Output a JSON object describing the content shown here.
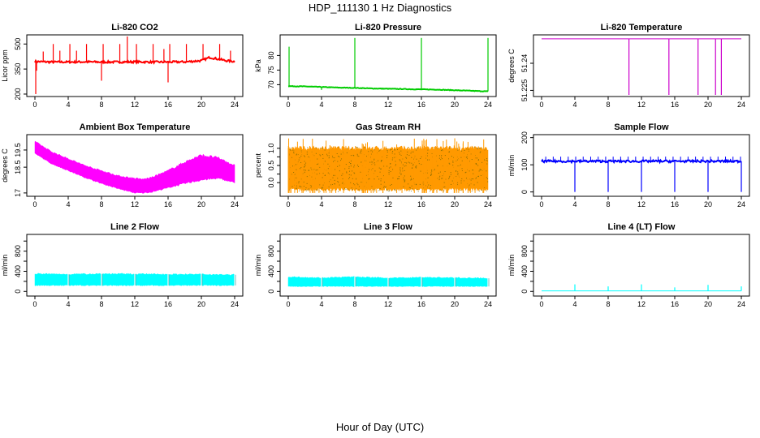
{
  "figure": {
    "title": "HDP_111130  1 Hz Diagnostics",
    "xlabel": "Hour of Day (UTC)"
  },
  "chart_data": [
    {
      "type": "line",
      "title": "Li-820 CO2",
      "ylabel": "Licor ppm",
      "color": "#ff0000",
      "x_ticks": [
        0,
        4,
        8,
        12,
        16,
        20,
        24
      ],
      "y_ticks": [
        200,
        350,
        500
      ],
      "xlim": [
        0,
        24
      ],
      "ylim": [
        195,
        545
      ],
      "baseline": [
        [
          0,
          395
        ],
        [
          2,
          392
        ],
        [
          4,
          392
        ],
        [
          6,
          393
        ],
        [
          8,
          392
        ],
        [
          10,
          392
        ],
        [
          12,
          393
        ],
        [
          14,
          392
        ],
        [
          16,
          392
        ],
        [
          18,
          393
        ],
        [
          20,
          400
        ],
        [
          21,
          420
        ],
        [
          22,
          410
        ],
        [
          23,
          400
        ],
        [
          24,
          395
        ]
      ],
      "band": 12,
      "spikes": [
        [
          0.1,
          200
        ],
        [
          0.2,
          340
        ],
        [
          1,
          455
        ],
        [
          2.2,
          500
        ],
        [
          3,
          460
        ],
        [
          4.2,
          500
        ],
        [
          5,
          460
        ],
        [
          6.2,
          500
        ],
        [
          8,
          280
        ],
        [
          8.2,
          500
        ],
        [
          10.2,
          500
        ],
        [
          11.1,
          545
        ],
        [
          12.2,
          500
        ],
        [
          14.2,
          500
        ],
        [
          15.5,
          470
        ],
        [
          16,
          270
        ],
        [
          16.2,
          500
        ],
        [
          18.2,
          500
        ],
        [
          20.2,
          500
        ],
        [
          22.2,
          500
        ],
        [
          23.5,
          460
        ]
      ]
    },
    {
      "type": "line",
      "title": "Li-820 Pressure",
      "ylabel": "kPa",
      "color": "#00cc00",
      "x_ticks": [
        0,
        4,
        8,
        12,
        16,
        20,
        24
      ],
      "y_ticks": [
        70,
        75,
        80
      ],
      "xlim": [
        0,
        24
      ],
      "ylim": [
        66.5,
        86.5
      ],
      "baseline": [
        [
          0,
          69.5
        ],
        [
          2,
          69.4
        ],
        [
          4,
          69.2
        ],
        [
          6,
          69.0
        ],
        [
          8,
          68.9
        ],
        [
          10,
          68.7
        ],
        [
          12,
          68.6
        ],
        [
          14,
          68.5
        ],
        [
          16,
          68.4
        ],
        [
          18,
          68.3
        ],
        [
          20,
          68.1
        ],
        [
          22,
          67.9
        ],
        [
          24,
          67.7
        ]
      ],
      "band": 0.2,
      "spikes": [
        [
          0.1,
          83
        ],
        [
          4,
          68.2
        ],
        [
          8,
          86
        ],
        [
          16,
          86
        ],
        [
          24,
          86
        ]
      ]
    },
    {
      "type": "line",
      "title": "Li-820 Temperature",
      "ylabel": "degrees C",
      "color": "#cc00cc",
      "x_ticks": [
        0,
        4,
        8,
        12,
        16,
        20,
        24
      ],
      "y_ticks": [
        51.225,
        51.24
      ],
      "xlim": [
        0,
        24
      ],
      "ylim": [
        51.2225,
        51.2548
      ],
      "baseline": [
        [
          0,
          51.2535
        ],
        [
          24,
          51.2535
        ]
      ],
      "band": 0,
      "spikes": [
        [
          10.5,
          51.2225
        ],
        [
          15.3,
          51.2225
        ],
        [
          18.8,
          51.2225
        ],
        [
          20.9,
          51.2225
        ],
        [
          21.6,
          51.2225
        ]
      ]
    },
    {
      "type": "area",
      "title": "Ambient Box Temperature",
      "ylabel": "degrees C",
      "color": "#ff00ff",
      "x_ticks": [
        0,
        4,
        8,
        12,
        16,
        20,
        24
      ],
      "y_ticks": [
        17.0,
        18.5,
        19.5
      ],
      "xlim": [
        0,
        24
      ],
      "ylim": [
        16.9,
        20.3
      ],
      "lower": [
        [
          0,
          19.3
        ],
        [
          2,
          18.7
        ],
        [
          4,
          18.3
        ],
        [
          6,
          17.9
        ],
        [
          8,
          17.55
        ],
        [
          10,
          17.25
        ],
        [
          12,
          17.0
        ],
        [
          13,
          17.0
        ],
        [
          14,
          17.05
        ],
        [
          16,
          17.3
        ],
        [
          18,
          17.55
        ],
        [
          20,
          17.75
        ],
        [
          22,
          17.85
        ],
        [
          24,
          17.6
        ]
      ],
      "upper": [
        [
          0,
          20.0
        ],
        [
          2,
          19.4
        ],
        [
          4,
          19.0
        ],
        [
          6,
          18.6
        ],
        [
          8,
          18.3
        ],
        [
          10,
          18.0
        ],
        [
          12,
          17.85
        ],
        [
          13,
          17.8
        ],
        [
          14,
          17.9
        ],
        [
          16,
          18.3
        ],
        [
          18,
          18.8
        ],
        [
          20,
          19.2
        ],
        [
          22,
          19.05
        ],
        [
          24,
          18.6
        ]
      ]
    },
    {
      "type": "area",
      "title": "Gas Stream RH",
      "ylabel": "percent",
      "color": "#ff9900",
      "dot_color": "#5a5a00",
      "x_ticks": [
        0,
        4,
        8,
        12,
        16,
        20,
        24
      ],
      "y_ticks": [
        0.0,
        0.5,
        1.0
      ],
      "y_tick_labels": [
        "0.0",
        "0.5",
        "1.0"
      ],
      "y_minor_ticks": [
        0.25,
        0.75
      ],
      "xlim": [
        0,
        24
      ],
      "ylim": [
        -0.35,
        1.35
      ],
      "lower": [
        [
          0,
          -0.2
        ],
        [
          24,
          -0.2
        ]
      ],
      "upper": [
        [
          0,
          1.0
        ],
        [
          24,
          1.0
        ]
      ]
    },
    {
      "type": "line",
      "title": "Sample Flow",
      "ylabel": "ml/min",
      "color": "#0000ff",
      "x_ticks": [
        0,
        4,
        8,
        12,
        16,
        20,
        24
      ],
      "y_ticks": [
        0,
        100,
        200
      ],
      "xlim": [
        0,
        24
      ],
      "ylim": [
        -10,
        205
      ],
      "baseline": [
        [
          0,
          113
        ],
        [
          24,
          113
        ]
      ],
      "band": 8,
      "spikes": [
        [
          4,
          0
        ],
        [
          8,
          0
        ],
        [
          12,
          0
        ],
        [
          16,
          0
        ],
        [
          20,
          0
        ],
        [
          24,
          0
        ]
      ]
    },
    {
      "type": "area",
      "title": "Line 2 Flow",
      "ylabel": "ml/min",
      "color": "#00ffff",
      "x_ticks": [
        0,
        4,
        8,
        12,
        16,
        20,
        24
      ],
      "y_ticks": [
        0,
        400,
        800
      ],
      "y_minor_ticks": [
        200,
        600,
        1000
      ],
      "xlim": [
        0,
        24
      ],
      "ylim": [
        -60,
        1100
      ],
      "lower": [
        [
          0,
          120
        ],
        [
          24,
          120
        ]
      ],
      "upper": [
        [
          0,
          350
        ],
        [
          4,
          340
        ],
        [
          8,
          350
        ],
        [
          12,
          345
        ],
        [
          16,
          340
        ],
        [
          20,
          340
        ],
        [
          24,
          330
        ]
      ],
      "gaps": [
        4,
        8,
        12,
        16,
        20,
        24
      ]
    },
    {
      "type": "area",
      "title": "Line 3 Flow",
      "ylabel": "ml/min",
      "color": "#00ffff",
      "x_ticks": [
        0,
        4,
        8,
        12,
        16,
        20,
        24
      ],
      "y_ticks": [
        0,
        400,
        800
      ],
      "y_minor_ticks": [
        200,
        600,
        1000
      ],
      "xlim": [
        0,
        24
      ],
      "ylim": [
        -60,
        1100
      ],
      "lower": [
        [
          0,
          100
        ],
        [
          24,
          100
        ]
      ],
      "upper": [
        [
          0,
          290
        ],
        [
          4,
          270
        ],
        [
          8,
          290
        ],
        [
          12,
          265
        ],
        [
          16,
          280
        ],
        [
          20,
          270
        ],
        [
          24,
          260
        ]
      ],
      "gaps": [
        4,
        8,
        12,
        16,
        20,
        24
      ]
    },
    {
      "type": "line",
      "title": "Line 4 (LT) Flow",
      "ylabel": "ml/min",
      "color": "#00ffff",
      "x_ticks": [
        0,
        4,
        8,
        12,
        16,
        20,
        24
      ],
      "y_ticks": [
        0,
        400,
        800
      ],
      "y_minor_ticks": [
        200,
        600,
        1000
      ],
      "xlim": [
        0,
        24
      ],
      "ylim": [
        -60,
        1100
      ],
      "baseline": [
        [
          0,
          10
        ],
        [
          24,
          10
        ]
      ],
      "band": 0,
      "spikes": [
        [
          4,
          140
        ],
        [
          8,
          100
        ],
        [
          12,
          140
        ],
        [
          16,
          80
        ],
        [
          20,
          130
        ],
        [
          24,
          100
        ]
      ]
    }
  ]
}
